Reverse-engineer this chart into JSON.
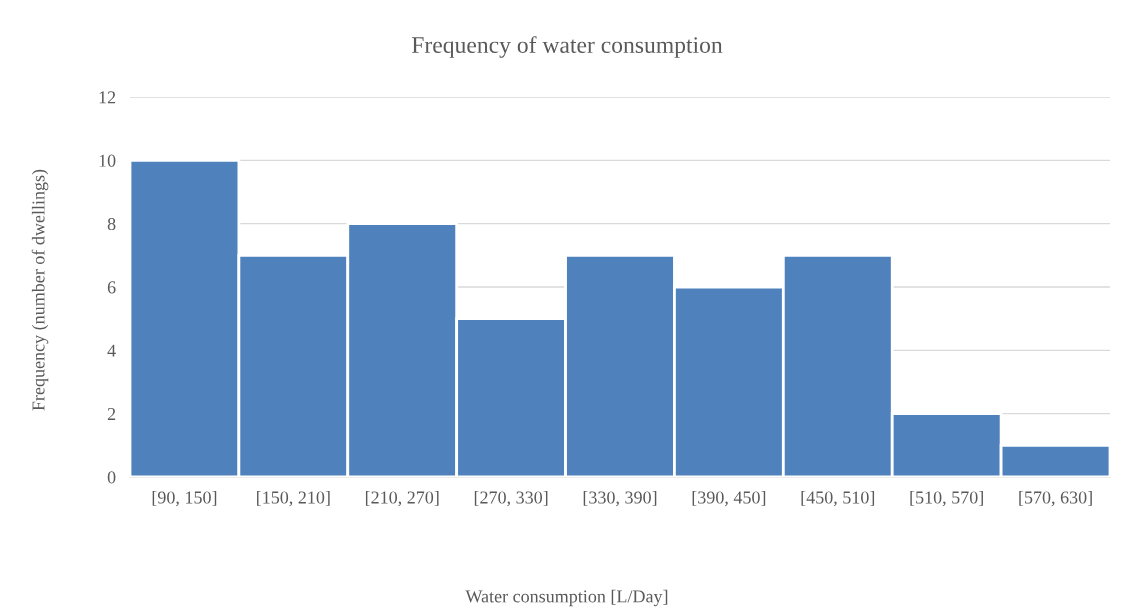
{
  "chart_data": {
    "type": "bar",
    "title": "Frequency of water consumption",
    "xlabel": "Water consumption [L/Day]",
    "ylabel": "Frequency (number of dwellings)",
    "categories": [
      "[90, 150]",
      "[150, 210]",
      "[210, 270]",
      "[270, 330]",
      "[330, 390]",
      "[390, 450]",
      "[450, 510]",
      "[510, 570]",
      "[570, 630]"
    ],
    "values": [
      10,
      7,
      8,
      5,
      7,
      6,
      7,
      2,
      1
    ],
    "color": "#4f81bd",
    "ylim": [
      0,
      12
    ],
    "yticks": [
      0,
      2,
      4,
      6,
      8,
      10,
      12
    ],
    "grid": "y"
  }
}
